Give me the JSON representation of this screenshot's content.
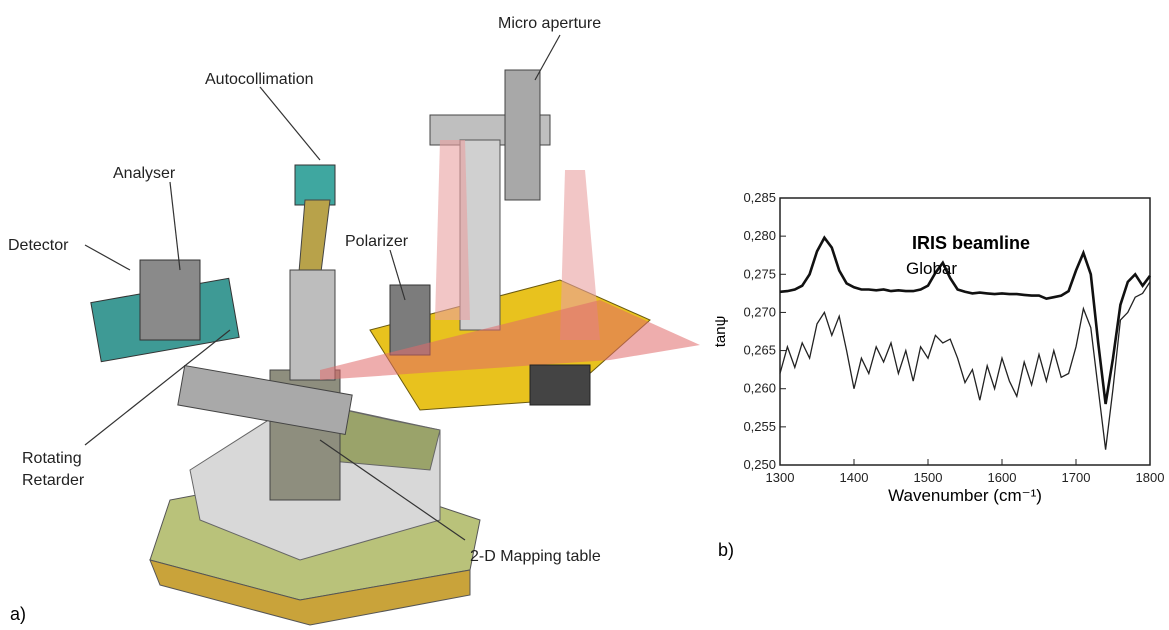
{
  "panel_a": {
    "label": "a)",
    "callouts": [
      {
        "lines": [
          "Micro aperture"
        ]
      },
      {
        "lines": [
          "Autocollimation"
        ]
      },
      {
        "lines": [
          "Analyser"
        ]
      },
      {
        "lines": [
          "Detector"
        ]
      },
      {
        "lines": [
          "Polarizer"
        ]
      },
      {
        "lines": [
          "Rotating",
          "Retarder"
        ]
      },
      {
        "lines": [
          "2-D Mapping table"
        ]
      }
    ]
  },
  "panel_b": {
    "label": "b)"
  },
  "chart_data": {
    "type": "line",
    "x_label": "Wavenumber (cm⁻¹)",
    "y_label": "tanψ",
    "x": [
      1300,
      1310,
      1320,
      1330,
      1340,
      1350,
      1360,
      1370,
      1380,
      1390,
      1400,
      1410,
      1420,
      1430,
      1440,
      1450,
      1460,
      1470,
      1480,
      1490,
      1500,
      1510,
      1520,
      1530,
      1540,
      1550,
      1560,
      1570,
      1580,
      1590,
      1600,
      1610,
      1620,
      1630,
      1640,
      1650,
      1660,
      1670,
      1680,
      1690,
      1700,
      1710,
      1720,
      1730,
      1740,
      1750,
      1760,
      1770,
      1780,
      1790,
      1800
    ],
    "series": [
      {
        "name": "IRIS beamline",
        "color": "#111111",
        "values": [
          0.2727,
          0.2728,
          0.273,
          0.2735,
          0.275,
          0.278,
          0.2798,
          0.2785,
          0.2755,
          0.2738,
          0.2733,
          0.273,
          0.273,
          0.2729,
          0.273,
          0.2728,
          0.2729,
          0.2728,
          0.2728,
          0.273,
          0.2735,
          0.2752,
          0.2765,
          0.2745,
          0.273,
          0.2727,
          0.2725,
          0.2726,
          0.2725,
          0.2724,
          0.2725,
          0.2724,
          0.2724,
          0.2723,
          0.2722,
          0.2722,
          0.2718,
          0.272,
          0.2722,
          0.2728,
          0.2755,
          0.2778,
          0.275,
          0.266,
          0.258,
          0.264,
          0.271,
          0.274,
          0.275,
          0.2735,
          0.2748
        ]
      },
      {
        "name": "Globar",
        "color": "#222222",
        "values": [
          0.262,
          0.2655,
          0.2628,
          0.266,
          0.264,
          0.2685,
          0.27,
          0.267,
          0.2695,
          0.265,
          0.26,
          0.264,
          0.262,
          0.2655,
          0.2635,
          0.266,
          0.262,
          0.265,
          0.261,
          0.2655,
          0.264,
          0.267,
          0.266,
          0.2665,
          0.264,
          0.2608,
          0.2625,
          0.2585,
          0.263,
          0.26,
          0.264,
          0.261,
          0.259,
          0.2635,
          0.2605,
          0.2645,
          0.261,
          0.265,
          0.2615,
          0.262,
          0.2655,
          0.2705,
          0.268,
          0.26,
          0.252,
          0.26,
          0.269,
          0.27,
          0.272,
          0.2725,
          0.274
        ]
      }
    ],
    "xlim": [
      1300,
      1800
    ],
    "xticks": [
      1300,
      1400,
      1500,
      1600,
      1700,
      1800
    ],
    "ylim": [
      0.25,
      0.285
    ],
    "yticks": [
      {
        "value": 0.25,
        "label": "0,250"
      },
      {
        "value": 0.255,
        "label": "0,255"
      },
      {
        "value": 0.26,
        "label": "0,260"
      },
      {
        "value": 0.265,
        "label": "0,265"
      },
      {
        "value": 0.27,
        "label": "0,270"
      },
      {
        "value": 0.275,
        "label": "0,275"
      },
      {
        "value": 0.28,
        "label": "0,280"
      },
      {
        "value": 0.285,
        "label": "0,285"
      }
    ]
  }
}
